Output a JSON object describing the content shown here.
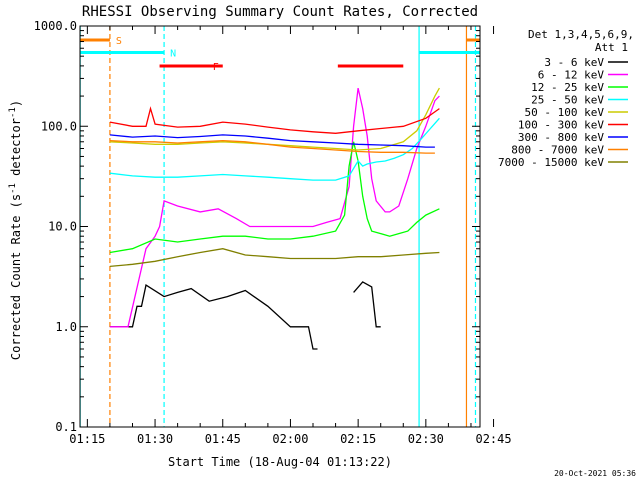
{
  "chart_data": {
    "type": "line",
    "title": "RHESSI Observing Summary Count Rates, Corrected",
    "xlabel": "Start Time (18-Aug-04 01:13:22)",
    "ylabel_parts": [
      "Corrected Count Rate (s",
      "-1",
      " detector",
      "-1",
      ")"
    ],
    "y_scale": "log",
    "ylim": [
      0.1,
      1000
    ],
    "xlim_min": [
      73.37,
      162
    ],
    "x_ticks_min": [
      75,
      90,
      105,
      120,
      135,
      150,
      165
    ],
    "x_tick_labels": [
      "01:15",
      "01:30",
      "01:45",
      "02:00",
      "02:15",
      "02:30",
      "02:45"
    ],
    "y_ticks": [
      0.1,
      1,
      10,
      100,
      1000
    ],
    "y_tick_labels": [
      "0.1",
      "1.0",
      "10.0",
      "100.0",
      "1000.0"
    ],
    "legend_header": [
      "Det 1,3,4,5,6,9,",
      "Att 1"
    ],
    "series": [
      {
        "name": "3 - 6 keV",
        "color": "#000000",
        "x_min": [
          80,
          84,
          85,
          86,
          87,
          88,
          92,
          95,
          98,
          102,
          106,
          110,
          115,
          120,
          124,
          125,
          126,
          132,
          134,
          136,
          138,
          139,
          140
        ],
        "values": [
          1.0,
          1.0,
          1.0,
          1.6,
          1.6,
          2.6,
          2.0,
          2.2,
          2.4,
          1.8,
          2.0,
          2.3,
          1.6,
          1.0,
          1.0,
          0.6,
          0.6,
          null,
          2.2,
          2.8,
          2.5,
          1.0,
          1.0
        ]
      },
      {
        "name": "6 - 12 keV",
        "color": "#ff00ff",
        "x_min": [
          80,
          84,
          88,
          90,
          91,
          92,
          95,
          100,
          104,
          108,
          111,
          115,
          120,
          125,
          128,
          131,
          133,
          134,
          135,
          136,
          137,
          138,
          139,
          141,
          142,
          144,
          146,
          148,
          150,
          152,
          153
        ],
        "values": [
          1.0,
          1.0,
          6.0,
          8.0,
          10,
          18,
          16,
          14,
          15,
          12,
          10,
          10,
          10,
          10,
          11,
          12,
          25,
          100,
          240,
          150,
          80,
          30,
          18,
          14,
          14,
          16,
          30,
          60,
          100,
          180,
          200
        ]
      },
      {
        "name": "12 - 25 keV",
        "color": "#00ff00",
        "x_min": [
          80,
          85,
          90,
          95,
          100,
          105,
          110,
          115,
          120,
          125,
          130,
          132,
          133,
          134,
          135,
          136,
          137,
          138,
          140,
          142,
          144,
          146,
          148,
          150,
          153
        ],
        "values": [
          5.5,
          6.0,
          7.5,
          7.0,
          7.5,
          8.0,
          8.0,
          7.5,
          7.5,
          8.0,
          9.0,
          13,
          40,
          70,
          45,
          20,
          12,
          9.0,
          8.5,
          8.0,
          8.5,
          9.0,
          11,
          13,
          15
        ]
      },
      {
        "name": "25 - 50 keV",
        "color": "#00ffff",
        "x_min": [
          80,
          85,
          90,
          95,
          100,
          105,
          110,
          115,
          120,
          125,
          130,
          133,
          134,
          135,
          136,
          137,
          139,
          141,
          143,
          145,
          147,
          149,
          151,
          153
        ],
        "values": [
          34,
          32,
          31,
          31,
          32,
          33,
          32,
          31,
          30,
          29,
          29,
          32,
          38,
          45,
          40,
          42,
          44,
          45,
          48,
          52,
          60,
          75,
          95,
          120
        ]
      },
      {
        "name": "50 - 100 keV",
        "color": "#cccc00",
        "x_min": [
          80,
          85,
          90,
          95,
          100,
          105,
          110,
          115,
          120,
          125,
          130,
          135,
          140,
          145,
          148,
          150,
          152,
          153
        ],
        "values": [
          70,
          68,
          66,
          66,
          68,
          70,
          68,
          66,
          64,
          62,
          60,
          58,
          60,
          70,
          90,
          130,
          200,
          240
        ]
      },
      {
        "name": "100 - 300 keV",
        "color": "#ff0000",
        "x_min": [
          80,
          85,
          88,
          89,
          90,
          95,
          100,
          105,
          110,
          115,
          120,
          125,
          130,
          135,
          140,
          145,
          150,
          153
        ],
        "values": [
          110,
          100,
          100,
          150,
          105,
          98,
          100,
          110,
          105,
          98,
          92,
          88,
          85,
          90,
          95,
          100,
          120,
          150
        ]
      },
      {
        "name": "300 - 800 keV",
        "color": "#0000ff",
        "x_min": [
          80,
          85,
          90,
          95,
          100,
          105,
          110,
          115,
          120,
          125,
          130,
          135,
          140,
          145,
          150,
          152
        ],
        "values": [
          82,
          78,
          80,
          77,
          79,
          82,
          80,
          76,
          72,
          70,
          68,
          66,
          65,
          64,
          62,
          62
        ]
      },
      {
        "name": "800 - 7000 keV",
        "color": "#ff8000",
        "x_min": [
          80,
          85,
          90,
          95,
          100,
          105,
          110,
          115,
          120,
          125,
          130,
          135,
          140,
          145,
          150,
          152
        ],
        "values": [
          72,
          70,
          70,
          68,
          70,
          72,
          70,
          66,
          62,
          60,
          58,
          56,
          55,
          55,
          54,
          54
        ]
      },
      {
        "name": "7000 - 15000 keV",
        "color": "#808000",
        "x_min": [
          80,
          85,
          90,
          95,
          100,
          105,
          110,
          115,
          120,
          125,
          130,
          135,
          140,
          145,
          150,
          153
        ],
        "values": [
          4.0,
          4.2,
          4.5,
          5.0,
          5.5,
          6.0,
          5.2,
          5.0,
          4.8,
          4.8,
          4.8,
          5.0,
          5.0,
          5.2,
          5.4,
          5.5
        ]
      }
    ],
    "flag_bars": [
      {
        "label": "S",
        "color": "#ff8000",
        "segments_min": [
          [
            73.4,
            80.0
          ],
          [
            159.0,
            162.0
          ]
        ],
        "y": 1000
      },
      {
        "label": "N",
        "color": "#00ffff",
        "segments_min": [
          [
            73.4,
            92.0
          ],
          [
            148.5,
            162.0
          ]
        ],
        "y": 750
      },
      {
        "label": "F",
        "color": "#ff0000",
        "segments_min": [
          [
            91.0,
            105.0
          ],
          [
            130.5,
            145.0
          ]
        ],
        "y": 550
      }
    ],
    "vlines": [
      {
        "x_min": 73.4,
        "color": "#00ffff",
        "dashed": false
      },
      {
        "x_min": 80.0,
        "color": "#ff8000",
        "dashed": true
      },
      {
        "x_min": 92.0,
        "color": "#00ffff",
        "dashed": true
      },
      {
        "x_min": 148.5,
        "color": "#00ffff",
        "dashed": false
      },
      {
        "x_min": 159.0,
        "color": "#ff8000",
        "dashed": false
      },
      {
        "x_min": 161.0,
        "color": "#00ffff",
        "dashed": true
      }
    ],
    "grid": false,
    "legend_position": "right"
  },
  "footer": {
    "timestamp": "20-Oct-2021 05:36"
  }
}
